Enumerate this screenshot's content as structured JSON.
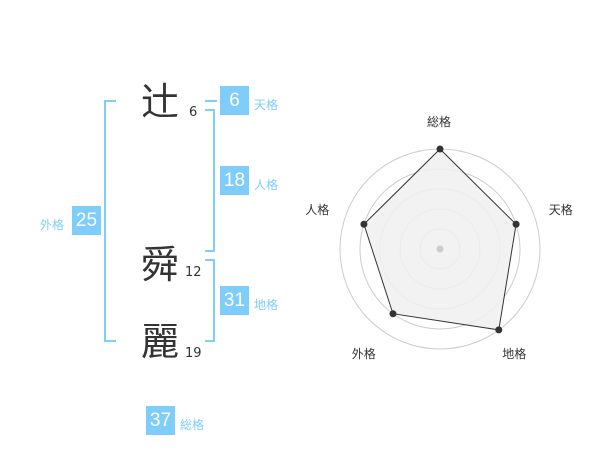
{
  "name": [
    {
      "char": "辻",
      "strokes": "6"
    },
    {
      "char": "舜",
      "strokes": "12"
    },
    {
      "char": "麗",
      "strokes": "19"
    }
  ],
  "fortune": {
    "tenkaku": {
      "label": "天格",
      "value": "6"
    },
    "jinkaku": {
      "label": "人格",
      "value": "18"
    },
    "chikaku": {
      "label": "地格",
      "value": "31"
    },
    "gaikaku": {
      "label": "外格",
      "value": "25"
    },
    "soukaku": {
      "label": "総格",
      "value": "37"
    }
  },
  "accent": "#7fcdfb",
  "chart_data": {
    "type": "radar",
    "axes": [
      "総格",
      "天格",
      "地格",
      "外格",
      "人格"
    ],
    "values": [
      5,
      4,
      5,
      4,
      4
    ],
    "range": [
      0,
      5
    ],
    "rings": 5,
    "fill": "#f0f0f0",
    "line": "#333333"
  }
}
